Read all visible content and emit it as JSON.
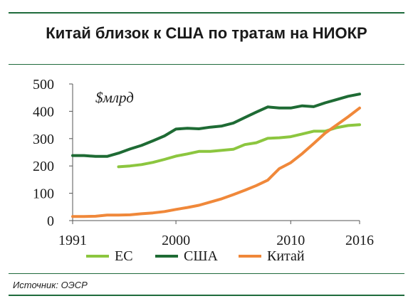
{
  "chart_data": {
    "type": "line",
    "title": "Китай близок к США по тратам на НИОКР",
    "unit_label": "$млрд",
    "source": "Источник: ОЭСР",
    "xlim": [
      1991,
      2016
    ],
    "ylim": [
      0,
      500
    ],
    "x_ticks": [
      "1991",
      "2000",
      "2010",
      "2016"
    ],
    "y_ticks": [
      "0",
      "100",
      "200",
      "300",
      "400",
      "500"
    ],
    "legend_position": "bottom",
    "series": [
      {
        "name": "ЕС",
        "color": "#8cc63f",
        "x": [
          1995,
          1996,
          1997,
          1998,
          1999,
          2000,
          2001,
          2002,
          2003,
          2004,
          2005,
          2006,
          2007,
          2008,
          2009,
          2010,
          2011,
          2012,
          2013,
          2014,
          2015,
          2016
        ],
        "values": [
          197,
          200,
          205,
          213,
          224,
          236,
          244,
          253,
          253,
          257,
          261,
          278,
          285,
          301,
          303,
          307,
          317,
          327,
          327,
          340,
          348,
          351
        ]
      },
      {
        "name": "США",
        "color": "#1e6b34",
        "x": [
          1991,
          1992,
          1993,
          1994,
          1995,
          1996,
          1997,
          1998,
          1999,
          2000,
          2001,
          2002,
          2003,
          2004,
          2005,
          2006,
          2007,
          2008,
          2009,
          2010,
          2011,
          2012,
          2013,
          2014,
          2015,
          2016
        ],
        "values": [
          238,
          238,
          235,
          235,
          247,
          262,
          275,
          292,
          310,
          335,
          338,
          336,
          342,
          346,
          357,
          377,
          397,
          416,
          412,
          412,
          420,
          417,
          431,
          443,
          455,
          463
        ]
      },
      {
        "name": "Китай",
        "color": "#f0883a",
        "x": [
          1991,
          1992,
          1993,
          1994,
          1995,
          1996,
          1997,
          1998,
          1999,
          2000,
          2001,
          2002,
          2003,
          2004,
          2005,
          2006,
          2007,
          2008,
          2009,
          2010,
          2011,
          2012,
          2013,
          2014,
          2015,
          2016
        ],
        "values": [
          15,
          15,
          16,
          20,
          20,
          21,
          25,
          28,
          33,
          41,
          48,
          56,
          68,
          80,
          95,
          111,
          128,
          148,
          190,
          212,
          245,
          282,
          320,
          350,
          380,
          412
        ]
      }
    ]
  }
}
